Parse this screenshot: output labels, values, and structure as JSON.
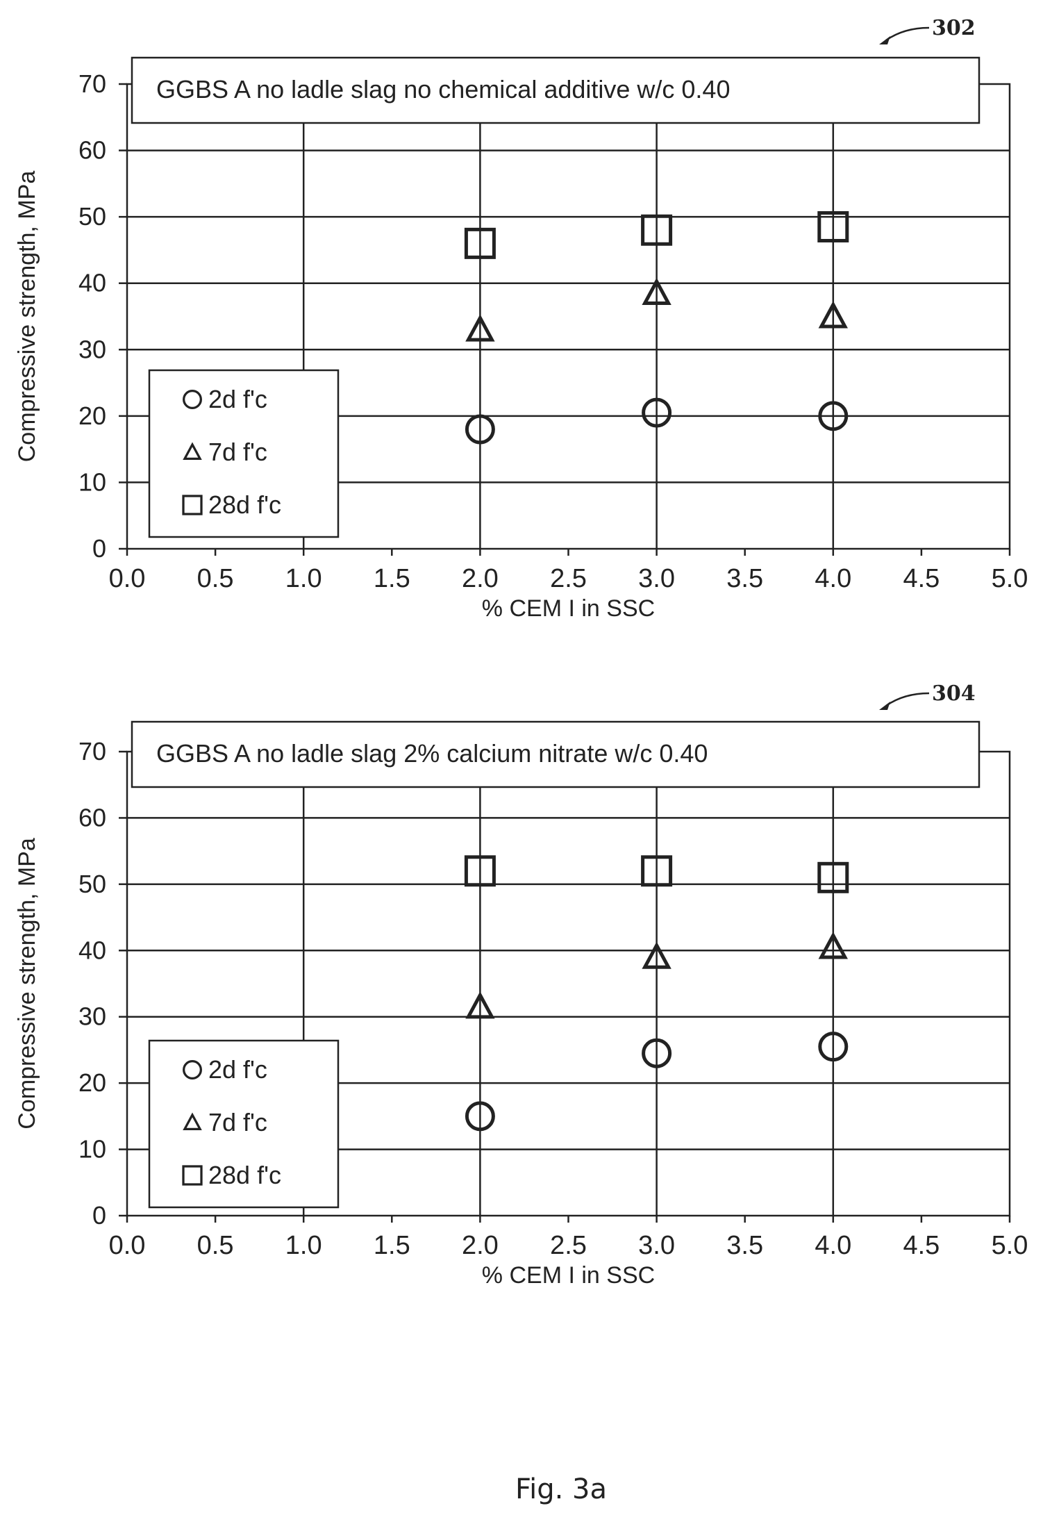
{
  "figure": {
    "caption": "Fig. 3a",
    "ref_labels": [
      "302",
      "304"
    ]
  },
  "chart_data": [
    {
      "type": "scatter",
      "title": "GGBS A no ladle slag no chemical additive w/c 0.40",
      "xlabel": "% CEM I in SSC",
      "ylabel": "Compressive strength, MPa",
      "xlim": [
        0,
        5
      ],
      "ylim": [
        0,
        70
      ],
      "xticks": [
        "0.0",
        "0.5",
        "1.0",
        "1.5",
        "2.0",
        "2.5",
        "3.0",
        "3.5",
        "4.0",
        "4.5",
        "5.0"
      ],
      "yticks": [
        "0",
        "10",
        "20",
        "30",
        "40",
        "50",
        "60",
        "70"
      ],
      "grid": true,
      "legend_position": "bottom-left",
      "series": [
        {
          "name": "2d f'c",
          "marker": "circle",
          "x": [
            2.0,
            3.0,
            4.0
          ],
          "y": [
            18,
            20.5,
            20
          ]
        },
        {
          "name": "7d f'c",
          "marker": "triangle",
          "x": [
            2.0,
            3.0,
            4.0
          ],
          "y": [
            33,
            38.5,
            35
          ]
        },
        {
          "name": "28d f'c",
          "marker": "square",
          "x": [
            2.0,
            3.0,
            4.0
          ],
          "y": [
            46,
            48,
            48.5
          ]
        }
      ]
    },
    {
      "type": "scatter",
      "title": "GGBS A no ladle slag 2% calcium nitrate w/c 0.40",
      "xlabel": "% CEM I in SSC",
      "ylabel": "Compressive strength, MPa",
      "xlim": [
        0,
        5
      ],
      "ylim": [
        0,
        70
      ],
      "xticks": [
        "0.0",
        "0.5",
        "1.0",
        "1.5",
        "2.0",
        "2.5",
        "3.0",
        "3.5",
        "4.0",
        "4.5",
        "5.0"
      ],
      "yticks": [
        "0",
        "10",
        "20",
        "30",
        "40",
        "50",
        "60",
        "70"
      ],
      "grid": true,
      "legend_position": "bottom-left",
      "series": [
        {
          "name": "2d f'c",
          "marker": "circle",
          "x": [
            2.0,
            3.0,
            4.0
          ],
          "y": [
            15,
            24.5,
            25.5
          ]
        },
        {
          "name": "7d f'c",
          "marker": "triangle",
          "x": [
            2.0,
            3.0,
            4.0
          ],
          "y": [
            31.5,
            39,
            40.5
          ]
        },
        {
          "name": "28d f'c",
          "marker": "square",
          "x": [
            2.0,
            3.0,
            4.0
          ],
          "y": [
            52,
            52,
            51
          ]
        }
      ]
    }
  ]
}
